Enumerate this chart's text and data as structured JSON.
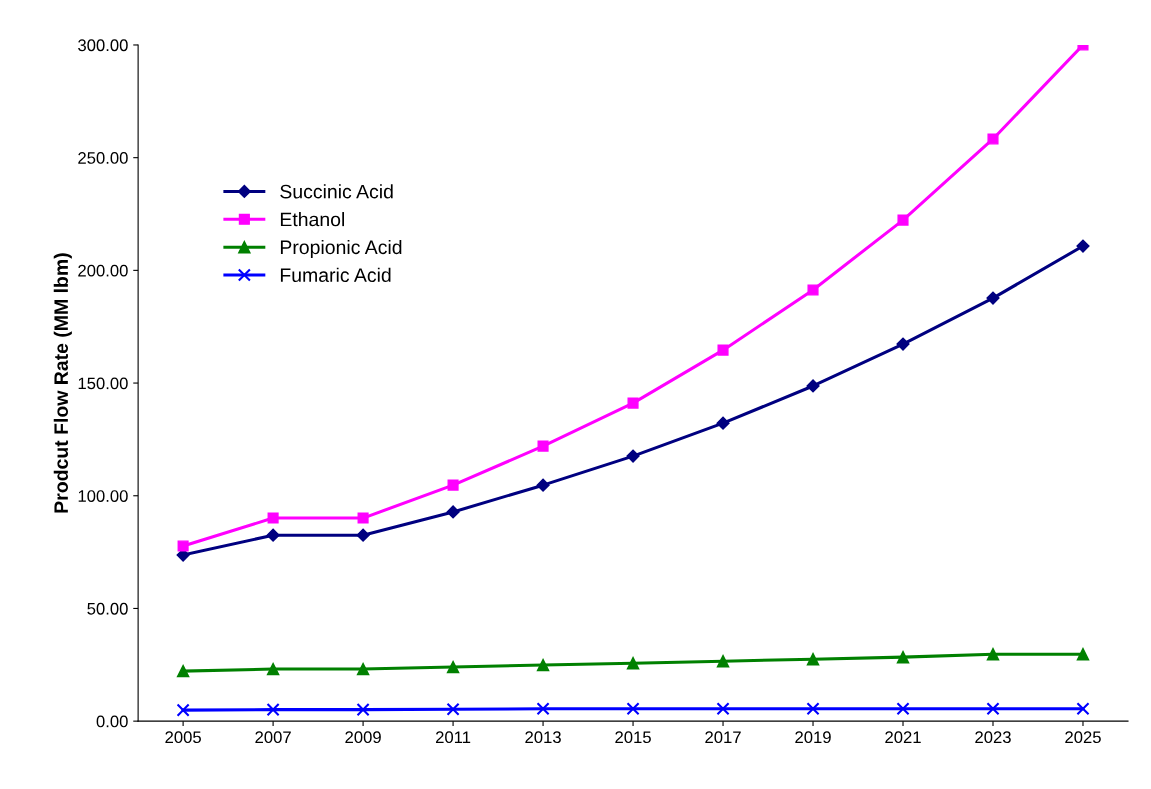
{
  "chart_data": {
    "type": "line",
    "ylabel": "Prodcut Flow Rate (MM lbm)",
    "categories": [
      "2005",
      "2007",
      "2009",
      "2011",
      "2013",
      "2015",
      "2017",
      "2019",
      "2021",
      "2023",
      "2025"
    ],
    "series": [
      {
        "name": "Succinic Acid",
        "color": "#000080",
        "marker": "diamond",
        "values": [
          73.7,
          82.5,
          82.5,
          92.8,
          104.7,
          117.6,
          132.2,
          148.7,
          167.3,
          187.7,
          210.8
        ]
      },
      {
        "name": "Ethanol",
        "color": "#ff00ff",
        "marker": "square",
        "values": [
          77.7,
          90.1,
          90.1,
          104.7,
          122.0,
          141.1,
          164.6,
          191.3,
          222.3,
          258.3,
          300.0
        ]
      },
      {
        "name": "Propionic Acid",
        "color": "#008000",
        "marker": "triangle",
        "values": [
          22.2,
          23.1,
          23.1,
          24.0,
          24.9,
          25.7,
          26.6,
          27.5,
          28.4,
          29.7,
          29.7
        ]
      },
      {
        "name": "Fumaric Acid",
        "color": "#0000ff",
        "marker": "cross",
        "values": [
          4.9,
          5.1,
          5.1,
          5.3,
          5.5,
          5.5,
          5.5,
          5.5,
          5.5,
          5.5,
          5.5
        ]
      }
    ],
    "ylim": [
      0,
      300
    ],
    "yticks": [
      {
        "value": 0,
        "label": "0.00"
      },
      {
        "value": 50,
        "label": "50.00"
      },
      {
        "value": 100,
        "label": "100.00"
      },
      {
        "value": 150,
        "label": "150.00"
      },
      {
        "value": 200,
        "label": "200.00"
      },
      {
        "value": 250,
        "label": "250.00"
      },
      {
        "value": 300,
        "label": "300.00"
      }
    ],
    "legend": "top left",
    "grid": false
  }
}
